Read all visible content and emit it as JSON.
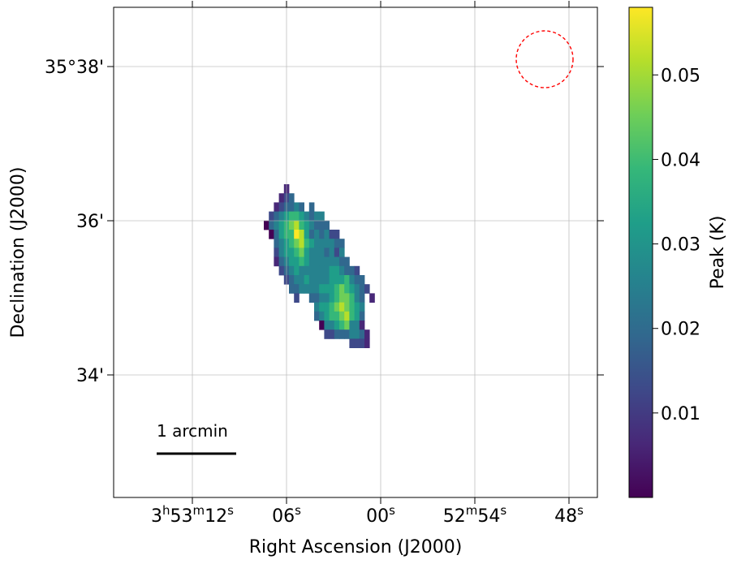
{
  "chart_data": {
    "type": "heatmap",
    "title": "",
    "xlabel": "Right Ascension (J2000)",
    "ylabel": "Declination (J2000)",
    "grid": true,
    "x_ticks": [
      {
        "main": "3",
        "sup1": "h",
        "mid": "53",
        "sup2": "m",
        "tail": "12",
        "sup3": "s"
      },
      {
        "main": "",
        "sup1": "",
        "mid": "",
        "sup2": "",
        "tail": "06",
        "sup3": "s"
      },
      {
        "main": "",
        "sup1": "",
        "mid": "",
        "sup2": "",
        "tail": "00",
        "sup3": "s"
      },
      {
        "main": "",
        "sup1": "",
        "mid": "52",
        "sup2": "m",
        "tail": "54",
        "sup3": "s"
      },
      {
        "main": "",
        "sup1": "",
        "mid": "",
        "sup2": "",
        "tail": "48",
        "sup3": "s"
      }
    ],
    "y_ticks": [
      "35°38'",
      "36'",
      "34'"
    ],
    "colorbar": {
      "label": "Peak (K)",
      "colormap": "viridis",
      "range": [
        0.0,
        0.058
      ],
      "ticks": [
        "0.01",
        "0.02",
        "0.03",
        "0.04",
        "0.05"
      ],
      "tick_values": [
        0.01,
        0.02,
        0.03,
        0.04,
        0.05
      ]
    },
    "scalebar": {
      "label": "1 arcmin"
    },
    "beam": {
      "shape": "circle",
      "style": "dashed",
      "color": "#ff0000"
    },
    "map_grid": {
      "cols": 28,
      "rows": 34,
      "nodata": ".",
      "levels": "0-9 → 0.000–0.058 K (value ≈ level × 0.0064)",
      "rows_data": [
        "....1.......................",
        "...123......................",
        "..123343.3..................",
        ".23456654344................",
        "0345678654333...............",
        ".03566985343422.............",
        "..34567865444433............",
        "..24556754443424............",
        "..134556544444433...........",
        "...2345444444554332.........",
        "....2344544445556433........",
        ".....3344445556765432.......",
        "......2..33445677643.1......",
        "..........4556787654........",
        "..........3456678653........",
        "...........044567441........",
        "............223334431.......",
        ".................2221......."
      ]
    }
  }
}
